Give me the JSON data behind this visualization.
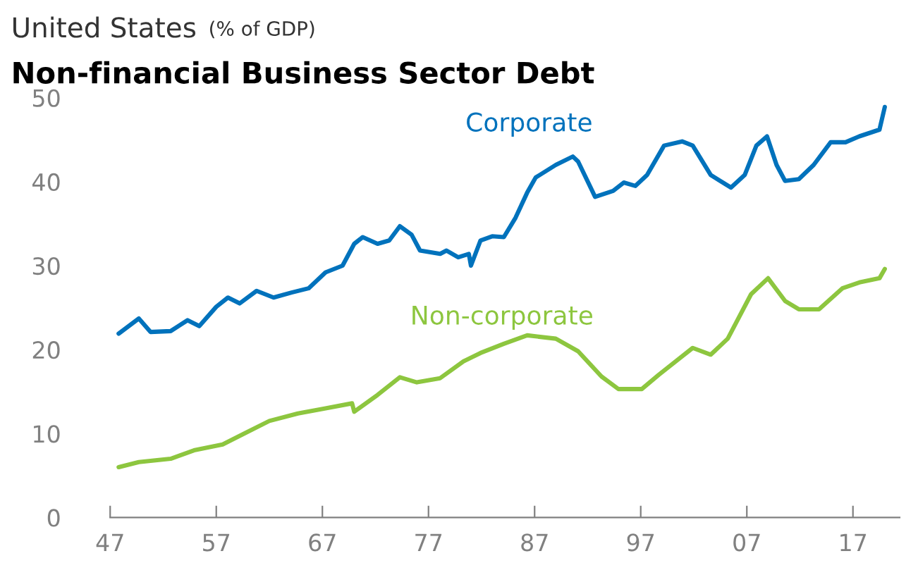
{
  "chart_data": {
    "type": "line",
    "subtitle": "United States",
    "ylabel": "(% of GDP)",
    "title": "Non-financial Business Sector Debt",
    "xlim": [
      1947,
      2021.4
    ],
    "xticks": [
      {
        "value": 1947,
        "label": "47"
      },
      {
        "value": 1957,
        "label": "57"
      },
      {
        "value": 1967,
        "label": "67"
      },
      {
        "value": 1977,
        "label": "77"
      },
      {
        "value": 1987,
        "label": "87"
      },
      {
        "value": 1997,
        "label": "97"
      },
      {
        "value": 2007,
        "label": "07"
      },
      {
        "value": 2017,
        "label": "17"
      }
    ],
    "ylim": [
      0,
      50
    ],
    "yticks": [
      0,
      10,
      20,
      30,
      40,
      50
    ],
    "grid": false,
    "legend": false,
    "marker": "none",
    "line_style": "solid",
    "series": [
      {
        "name": "Corporate",
        "color": "#0072bc",
        "x": [
          1947.8,
          1949.7,
          1950.8,
          1952.7,
          1954.3,
          1955.4,
          1957.0,
          1958.1,
          1959.2,
          1960.8,
          1962.4,
          1964.1,
          1965.7,
          1967.3,
          1968.9,
          1970.0,
          1970.8,
          1972.2,
          1973.3,
          1974.3,
          1975.4,
          1976.2,
          1978.1,
          1978.7,
          1979.8,
          1980.8,
          1981.0,
          1981.9,
          1983.0,
          1984.1,
          1985.2,
          1986.3,
          1987.1,
          1989.0,
          1990.6,
          1991.1,
          1992.7,
          1994.4,
          1995.4,
          1996.5,
          1997.6,
          1999.2,
          2000.9,
          2001.9,
          2003.6,
          2005.5,
          2006.8,
          2007.9,
          2008.9,
          2009.8,
          2010.6,
          2011.9,
          2013.3,
          2014.9,
          2016.3,
          2017.6,
          2019.5,
          2020.0
        ],
        "values": [
          21.9,
          23.7,
          22.1,
          22.2,
          23.5,
          22.8,
          25.1,
          26.2,
          25.5,
          27.0,
          26.2,
          26.8,
          27.3,
          29.2,
          30.0,
          32.6,
          33.4,
          32.6,
          33.0,
          34.7,
          33.7,
          31.8,
          31.4,
          31.8,
          31.0,
          31.4,
          30.0,
          33.0,
          33.5,
          33.4,
          35.7,
          38.7,
          40.5,
          42.0,
          43.0,
          42.4,
          38.2,
          38.9,
          39.9,
          39.5,
          40.8,
          44.3,
          44.8,
          44.3,
          40.8,
          39.3,
          40.8,
          44.3,
          45.4,
          42.0,
          40.1,
          40.3,
          42.0,
          44.7,
          44.7,
          45.4,
          46.2,
          48.9
        ]
      },
      {
        "name": "Non-corporate",
        "color": "#8dc63f",
        "x": [
          1947.8,
          1949.7,
          1952.7,
          1954.9,
          1957.6,
          1959.8,
          1962.0,
          1964.7,
          1967.3,
          1969.8,
          1970.0,
          1972.2,
          1974.3,
          1975.9,
          1978.1,
          1980.3,
          1981.9,
          1984.1,
          1986.3,
          1989.0,
          1991.1,
          1993.3,
          1994.9,
          1997.1,
          1998.7,
          2001.9,
          2003.6,
          2005.2,
          2007.4,
          2009.0,
          2010.6,
          2011.9,
          2013.8,
          2016.0,
          2017.6,
          2019.5,
          2020.0
        ],
        "values": [
          6.0,
          6.6,
          7.0,
          8.0,
          8.7,
          10.1,
          11.5,
          12.4,
          13.0,
          13.6,
          12.6,
          14.6,
          16.7,
          16.1,
          16.6,
          18.6,
          19.6,
          20.7,
          21.7,
          21.3,
          19.8,
          16.8,
          15.3,
          15.3,
          17.0,
          20.2,
          19.4,
          21.3,
          26.6,
          28.5,
          25.8,
          24.8,
          24.8,
          27.3,
          28.0,
          28.5,
          29.6
        ]
      }
    ]
  }
}
